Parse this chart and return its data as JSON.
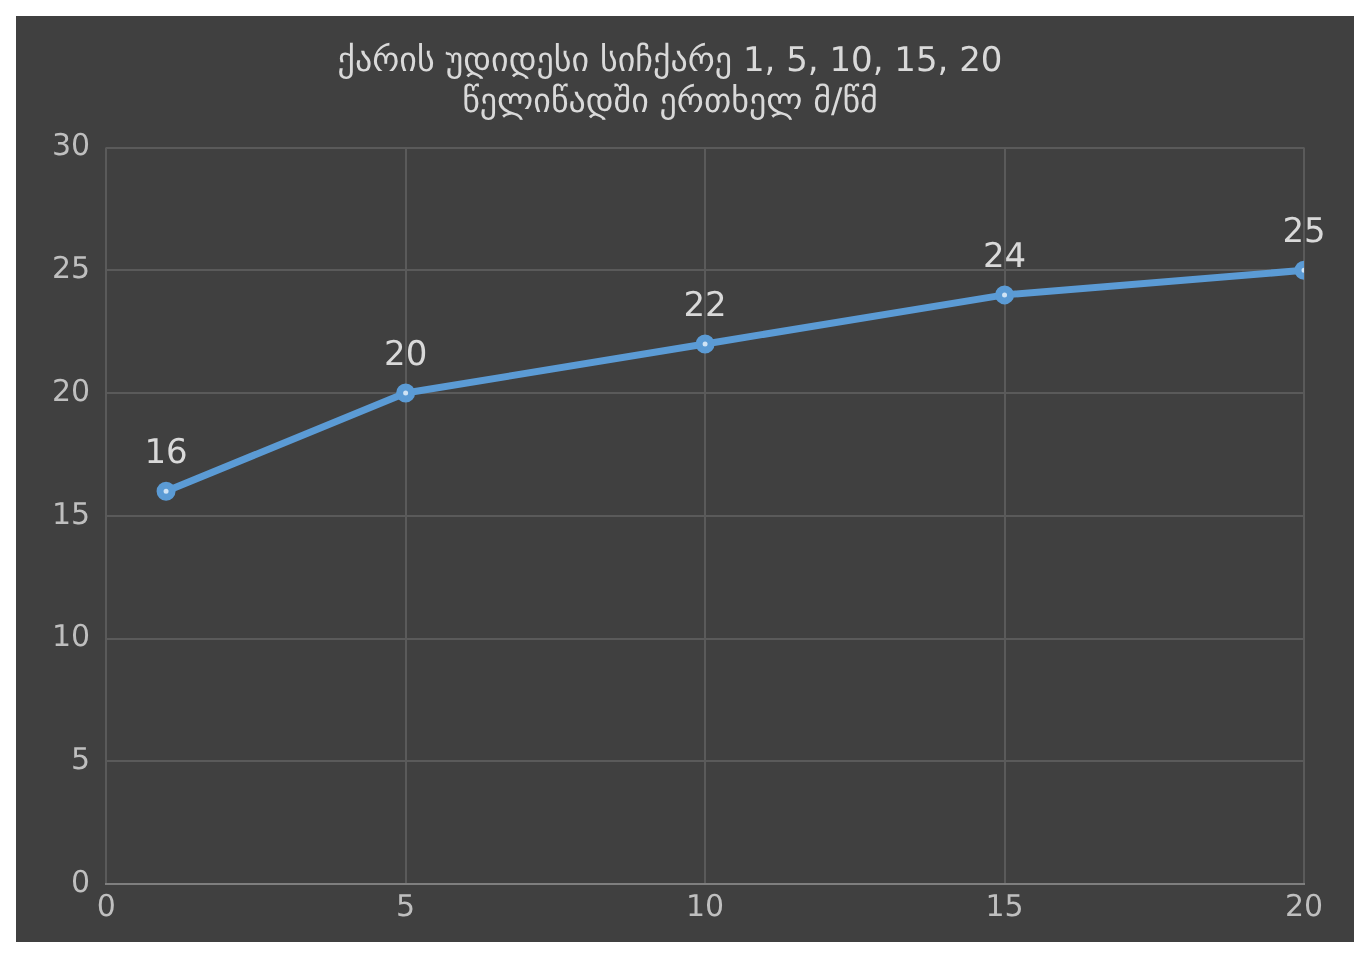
{
  "chart_data": {
    "type": "line",
    "title": "ქარის უდიდესი სიჩქარე 1, 5, 10, 15, 20\nწელიწადში ერთხელ მ/წმ",
    "x": [
      1,
      5,
      10,
      15,
      20
    ],
    "series": [
      {
        "color": "#5b9bd5",
        "values": [
          16,
          20,
          22,
          24,
          25
        ]
      }
    ],
    "xlim": [
      0,
      20
    ],
    "xticks": [
      0,
      5,
      10,
      15,
      20
    ],
    "ylim": [
      0,
      30
    ],
    "yticks": [
      0,
      5,
      10,
      15,
      20,
      25,
      30
    ],
    "grid": true,
    "data_labels": true,
    "marker": "circle",
    "line_style": "solid",
    "legend": false
  }
}
